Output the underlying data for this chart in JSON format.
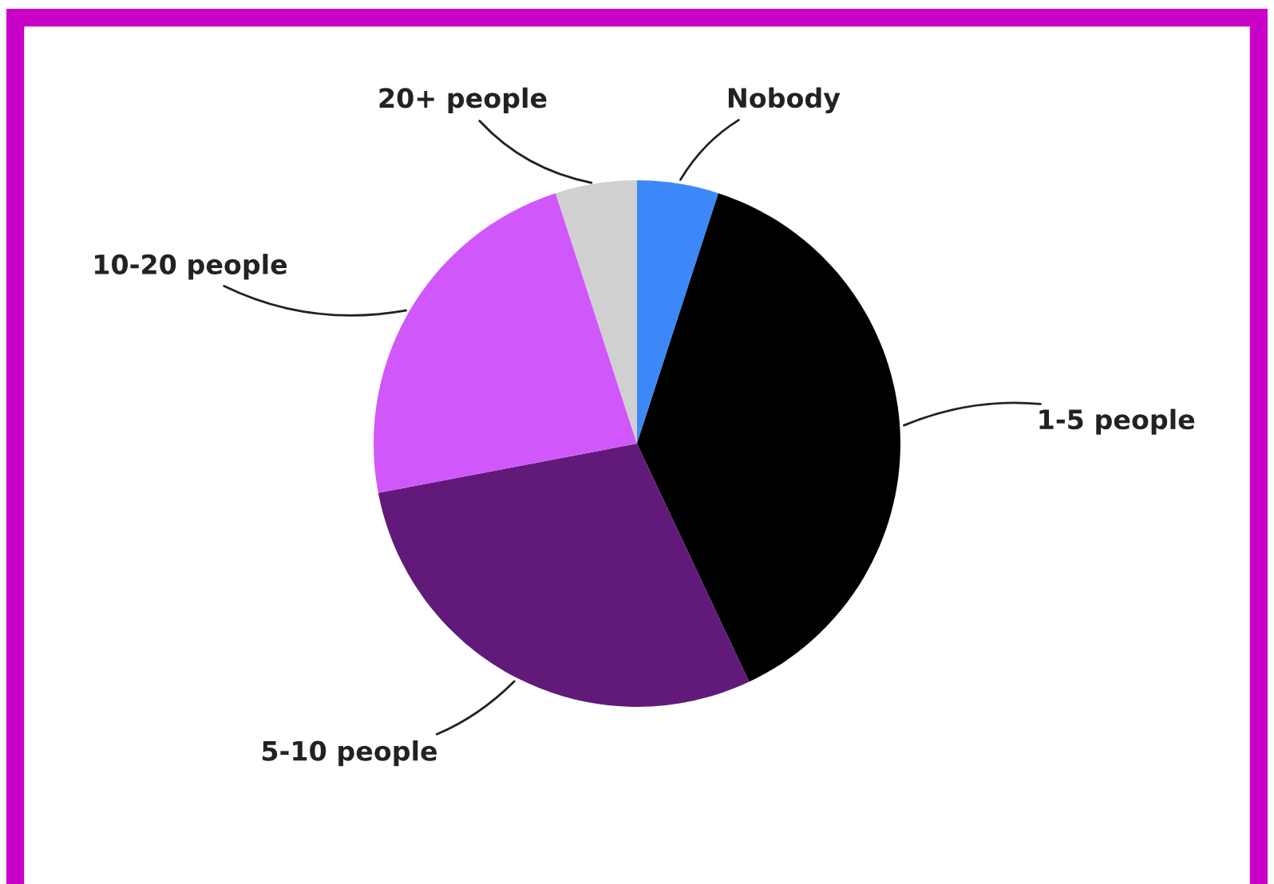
{
  "chart_data": {
    "type": "pie",
    "categories": [
      "Nobody",
      "1-5 people",
      "5-10 people",
      "10-20 people",
      "20+ people"
    ],
    "values": [
      5,
      38,
      29,
      23,
      5
    ],
    "colors": [
      "#3d88f9",
      "#000000",
      "#611a7a",
      "#d058fa",
      "#d0d0d0"
    ]
  }
}
